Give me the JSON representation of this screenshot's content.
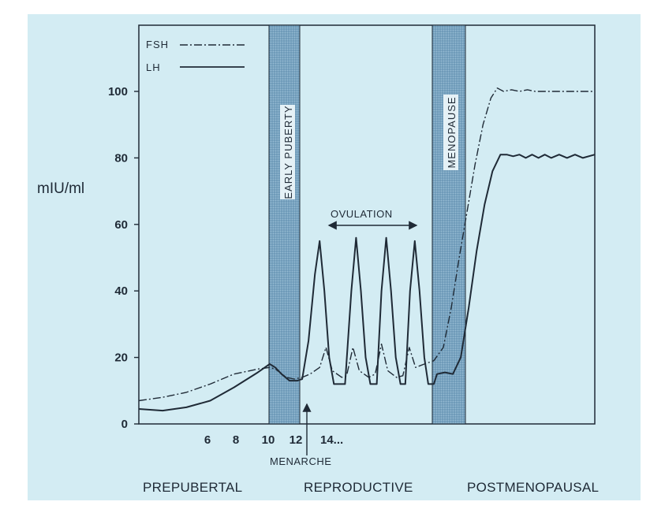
{
  "chart_data": {
    "type": "line",
    "ylabel": "mIU/ml",
    "ylim": [
      0,
      120
    ],
    "yticks": [
      0,
      20,
      40,
      60,
      80,
      100
    ],
    "xticks": [
      "6",
      "8",
      "10",
      "12",
      "14..."
    ],
    "phases": [
      "PREPUBERTAL",
      "REPRODUCTIVE",
      "POSTMENOPAUSAL"
    ],
    "bands": [
      {
        "label": "EARLY  PUBERTY"
      },
      {
        "label": "MENOPAUSE"
      }
    ],
    "annotations": {
      "ovulation": "OVULATION",
      "menarche": "MENARCHE"
    },
    "series": [
      {
        "name": "FSH",
        "style": "dash-dot",
        "values": [
          [
            0,
            7
          ],
          [
            30,
            8
          ],
          [
            60,
            9.5
          ],
          [
            90,
            12
          ],
          [
            120,
            15
          ],
          [
            150,
            16.5
          ],
          [
            165,
            17
          ],
          [
            172,
            16.5
          ],
          [
            178,
            15.5
          ],
          [
            186,
            14
          ],
          [
            196,
            13.5
          ],
          [
            206,
            14
          ],
          [
            216,
            15
          ],
          [
            228,
            17
          ],
          [
            236,
            23
          ],
          [
            244,
            16
          ],
          [
            256,
            14
          ],
          [
            262,
            14.5
          ],
          [
            270,
            23
          ],
          [
            278,
            16
          ],
          [
            290,
            14
          ],
          [
            298,
            15
          ],
          [
            306,
            24
          ],
          [
            314,
            16
          ],
          [
            325,
            14
          ],
          [
            333,
            14.5
          ],
          [
            341,
            23
          ],
          [
            349,
            17
          ],
          [
            360,
            18
          ],
          [
            372,
            19
          ],
          [
            384,
            23
          ],
          [
            394,
            35
          ],
          [
            404,
            50
          ],
          [
            414,
            64
          ],
          [
            424,
            78
          ],
          [
            434,
            90
          ],
          [
            444,
            98
          ],
          [
            452,
            101
          ],
          [
            460,
            100
          ],
          [
            470,
            100.5
          ],
          [
            480,
            100
          ],
          [
            490,
            100.5
          ],
          [
            500,
            100
          ],
          [
            510,
            100
          ],
          [
            520,
            100
          ],
          [
            530,
            100
          ],
          [
            545,
            100
          ],
          [
            560,
            100
          ],
          [
            575,
            100
          ]
        ]
      },
      {
        "name": "LH",
        "style": "solid",
        "values": [
          [
            0,
            4.5
          ],
          [
            30,
            4
          ],
          [
            60,
            5
          ],
          [
            90,
            7
          ],
          [
            120,
            11
          ],
          [
            150,
            15.5
          ],
          [
            165,
            18
          ],
          [
            172,
            17
          ],
          [
            180,
            15
          ],
          [
            190,
            13
          ],
          [
            200,
            13
          ],
          [
            206,
            13.5
          ],
          [
            214,
            25
          ],
          [
            222,
            45
          ],
          [
            228,
            55
          ],
          [
            234,
            40
          ],
          [
            240,
            20
          ],
          [
            246,
            12
          ],
          [
            260,
            12
          ],
          [
            268,
            40
          ],
          [
            274,
            56
          ],
          [
            280,
            40
          ],
          [
            286,
            20
          ],
          [
            292,
            12
          ],
          [
            300,
            12
          ],
          [
            306,
            40
          ],
          [
            312,
            56
          ],
          [
            318,
            40
          ],
          [
            324,
            20
          ],
          [
            330,
            12
          ],
          [
            336,
            12
          ],
          [
            342,
            40
          ],
          [
            348,
            55
          ],
          [
            354,
            40
          ],
          [
            360,
            20
          ],
          [
            365,
            12
          ],
          [
            372,
            12
          ],
          [
            376,
            15
          ],
          [
            386,
            15.5
          ],
          [
            396,
            15
          ],
          [
            406,
            20
          ],
          [
            416,
            35
          ],
          [
            426,
            52
          ],
          [
            436,
            66
          ],
          [
            446,
            76
          ],
          [
            456,
            81
          ],
          [
            464,
            81
          ],
          [
            472,
            80.5
          ],
          [
            480,
            81
          ],
          [
            488,
            80
          ],
          [
            496,
            81
          ],
          [
            504,
            80
          ],
          [
            512,
            81
          ],
          [
            520,
            80
          ],
          [
            530,
            81
          ],
          [
            540,
            80
          ],
          [
            550,
            81
          ],
          [
            560,
            80
          ],
          [
            575,
            81
          ]
        ]
      }
    ]
  },
  "legend": [
    {
      "name": "FSH"
    },
    {
      "name": "LH"
    }
  ]
}
